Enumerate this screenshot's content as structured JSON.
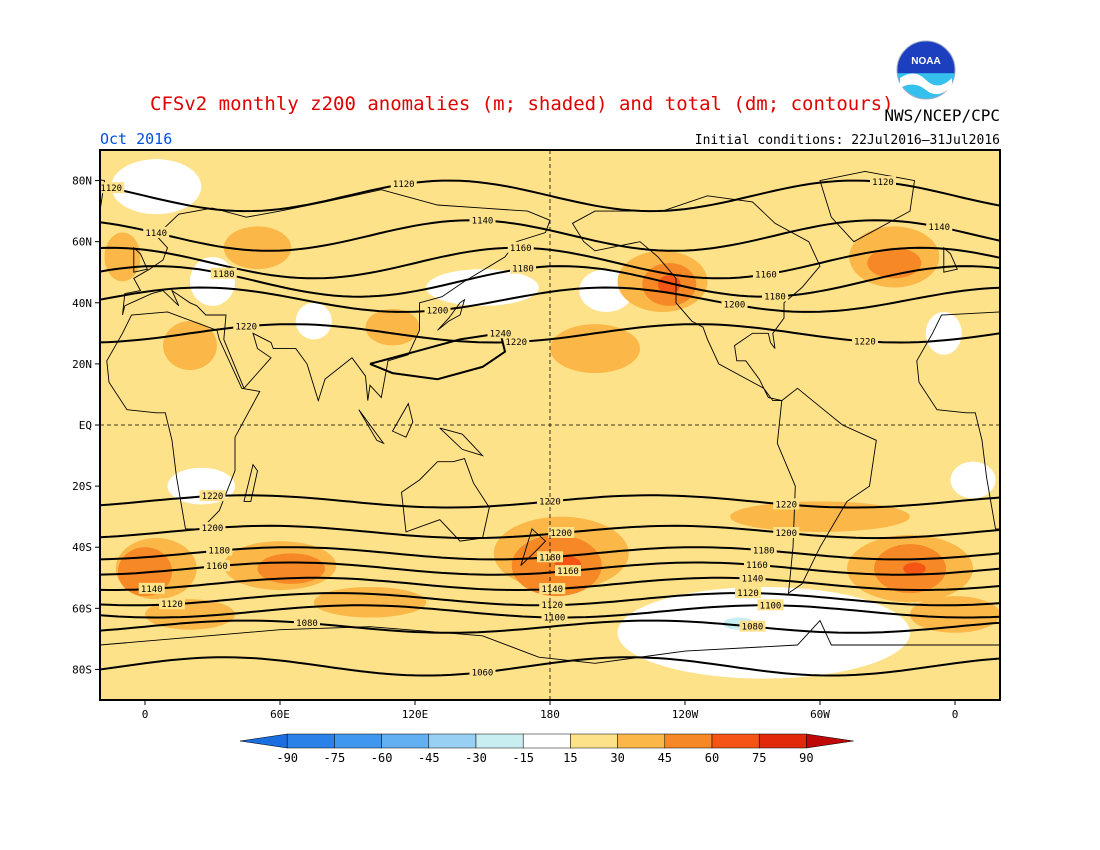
{
  "title": "CFSv2 monthly z200 anomalies (m; shaded) and total (dm; contours)",
  "agency": "NWS/NCEP/CPC",
  "logo_text": "NOAA",
  "month": "Oct 2016",
  "initial_conditions": "Initial conditions: 22Jul2016–31Jul2016",
  "map": {
    "projection": "cylindrical",
    "lon_range": [
      -20,
      380
    ],
    "lat_range": [
      -90,
      90
    ],
    "lat_ticks": [
      {
        "lat": 80,
        "label": "80N"
      },
      {
        "lat": 60,
        "label": "60N"
      },
      {
        "lat": 40,
        "label": "40N"
      },
      {
        "lat": 20,
        "label": "20N"
      },
      {
        "lat": 0,
        "label": "EQ"
      },
      {
        "lat": -20,
        "label": "20S"
      },
      {
        "lat": -40,
        "label": "40S"
      },
      {
        "lat": -60,
        "label": "60S"
      },
      {
        "lat": -80,
        "label": "80S"
      }
    ],
    "lon_ticks": [
      {
        "lon": 0,
        "label": "0"
      },
      {
        "lon": 60,
        "label": "60E"
      },
      {
        "lon": 120,
        "label": "120E"
      },
      {
        "lon": 180,
        "label": "180"
      },
      {
        "lon": 240,
        "label": "120W"
      },
      {
        "lon": 300,
        "label": "60W"
      },
      {
        "lon": 360,
        "label": "0"
      }
    ],
    "dashed_lines": {
      "equator_lat": 0,
      "dateline_lon": 180
    },
    "background_color": "#fee28a"
  },
  "colorbar": {
    "levels": [
      -90,
      -75,
      -60,
      -45,
      -30,
      -15,
      15,
      30,
      45,
      60,
      75,
      90
    ],
    "labels": [
      "-90",
      "-75",
      "-60",
      "-45",
      "-30",
      "-15",
      "15",
      "30",
      "45",
      "60",
      "75",
      "90"
    ],
    "colors": [
      "#1a6ee0",
      "#2a82e8",
      "#3f98ee",
      "#62b0f2",
      "#98d0f4",
      "#c8eef2",
      "#ffffff",
      "#fee28a",
      "#fbb848",
      "#f68826",
      "#f45514",
      "#e02a0a",
      "#c00808"
    ]
  },
  "chart_data": {
    "type": "heatmap",
    "variable": "z200",
    "title": "CFSv2 monthly z200 anomalies (m; shaded) and total (dm; contours)",
    "anomaly_regions": [
      {
        "level": "white",
        "lon": 5,
        "lat": 78,
        "rx": 20,
        "ry": 9
      },
      {
        "level": "white",
        "lon": 30,
        "lat": 47,
        "rx": 10,
        "ry": 8
      },
      {
        "level": "white",
        "lon": 75,
        "lat": 34,
        "rx": 8,
        "ry": 6
      },
      {
        "level": "white",
        "lon": 150,
        "lat": 45,
        "rx": 25,
        "ry": 6
      },
      {
        "level": "white",
        "lon": 205,
        "lat": 44,
        "rx": 12,
        "ry": 7
      },
      {
        "level": "white",
        "lon": 355,
        "lat": 30,
        "rx": 8,
        "ry": 7
      },
      {
        "level": "white",
        "lon": 25,
        "lat": -20,
        "rx": 15,
        "ry": 6
      },
      {
        "level": "white",
        "lon": 275,
        "lat": -68,
        "rx": 65,
        "ry": 15
      },
      {
        "level": "white",
        "lon": 368,
        "lat": -18,
        "rx": 10,
        "ry": 6
      },
      {
        "level": "light-blue",
        "lon": 264,
        "lat": -65,
        "rx": 7,
        "ry": 2
      },
      {
        "level": "30-45",
        "lon": 50,
        "lat": 58,
        "rx": 15,
        "ry": 7
      },
      {
        "level": "30-45",
        "lon": 110,
        "lat": 32,
        "rx": 12,
        "ry": 6
      },
      {
        "level": "30-45",
        "lon": 20,
        "lat": 26,
        "rx": 12,
        "ry": 8
      },
      {
        "level": "30-45",
        "lon": 230,
        "lat": 47,
        "rx": 20,
        "ry": 10
      },
      {
        "level": "30-45",
        "lon": 333,
        "lat": 55,
        "rx": 20,
        "ry": 10
      },
      {
        "level": "30-45",
        "lon": -10,
        "lat": 55,
        "rx": 8,
        "ry": 8
      },
      {
        "level": "30-45",
        "lon": 200,
        "lat": 25,
        "rx": 20,
        "ry": 8
      },
      {
        "level": "30-45",
        "lon": 185,
        "lat": -42,
        "rx": 30,
        "ry": 12
      },
      {
        "level": "30-45",
        "lon": 340,
        "lat": -47,
        "rx": 28,
        "ry": 11
      },
      {
        "level": "30-45",
        "lon": 60,
        "lat": -46,
        "rx": 25,
        "ry": 8
      },
      {
        "level": "30-45",
        "lon": 5,
        "lat": -47,
        "rx": 18,
        "ry": 10
      },
      {
        "level": "30-45",
        "lon": 20,
        "lat": -62,
        "rx": 20,
        "ry": 5
      },
      {
        "level": "30-45",
        "lon": 100,
        "lat": -58,
        "rx": 25,
        "ry": 5
      },
      {
        "level": "30-45",
        "lon": 300,
        "lat": -30,
        "rx": 40,
        "ry": 5
      },
      {
        "level": "30-45",
        "lon": 360,
        "lat": -62,
        "rx": 20,
        "ry": 6
      },
      {
        "level": "45-60",
        "lon": 233,
        "lat": 46,
        "rx": 12,
        "ry": 7
      },
      {
        "level": "45-60",
        "lon": 333,
        "lat": 53,
        "rx": 12,
        "ry": 5
      },
      {
        "level": "45-60",
        "lon": 183,
        "lat": -46,
        "rx": 20,
        "ry": 10
      },
      {
        "level": "45-60",
        "lon": 340,
        "lat": -47,
        "rx": 16,
        "ry": 8
      },
      {
        "level": "45-60",
        "lon": 65,
        "lat": -47,
        "rx": 15,
        "ry": 5
      },
      {
        "level": "45-60",
        "lon": 0,
        "lat": -48,
        "rx": 12,
        "ry": 8
      },
      {
        "level": "60-75",
        "lon": 233,
        "lat": 46,
        "rx": 5,
        "ry": 3
      },
      {
        "level": "60-75",
        "lon": 188,
        "lat": -46,
        "rx": 6,
        "ry": 3
      },
      {
        "level": "60-75",
        "lon": 342,
        "lat": -47,
        "rx": 5,
        "ry": 2
      }
    ],
    "contours": [
      {
        "value": 1060,
        "label": "1060",
        "label_lon": [
          150
        ]
      },
      {
        "value": 1080,
        "label": "1080",
        "label_lon": [
          72,
          270
        ]
      },
      {
        "value": 1100,
        "label": "1100",
        "label_lon": [
          182,
          278
        ]
      },
      {
        "value": 1120,
        "label": "1120",
        "label_lon": [
          12,
          181,
          268,
          -15,
          115,
          328
        ]
      },
      {
        "value": 1140,
        "label": "1140",
        "label_lon": [
          3,
          181,
          270,
          5,
          150,
          353
        ]
      },
      {
        "value": 1160,
        "label": "1160",
        "label_lon": [
          32,
          188,
          272,
          167,
          276
        ]
      },
      {
        "value": 1180,
        "label": "1180",
        "label_lon": [
          33,
          180,
          275,
          35,
          168,
          280
        ]
      },
      {
        "value": 1200,
        "label": "1200",
        "label_lon": [
          30,
          185,
          285,
          130,
          262
        ]
      },
      {
        "value": 1220,
        "label": "1220",
        "label_lon": [
          30,
          180,
          285,
          45,
          165,
          320
        ]
      },
      {
        "value": 1240,
        "label": "1240",
        "label_lon": [
          158
        ]
      }
    ]
  }
}
